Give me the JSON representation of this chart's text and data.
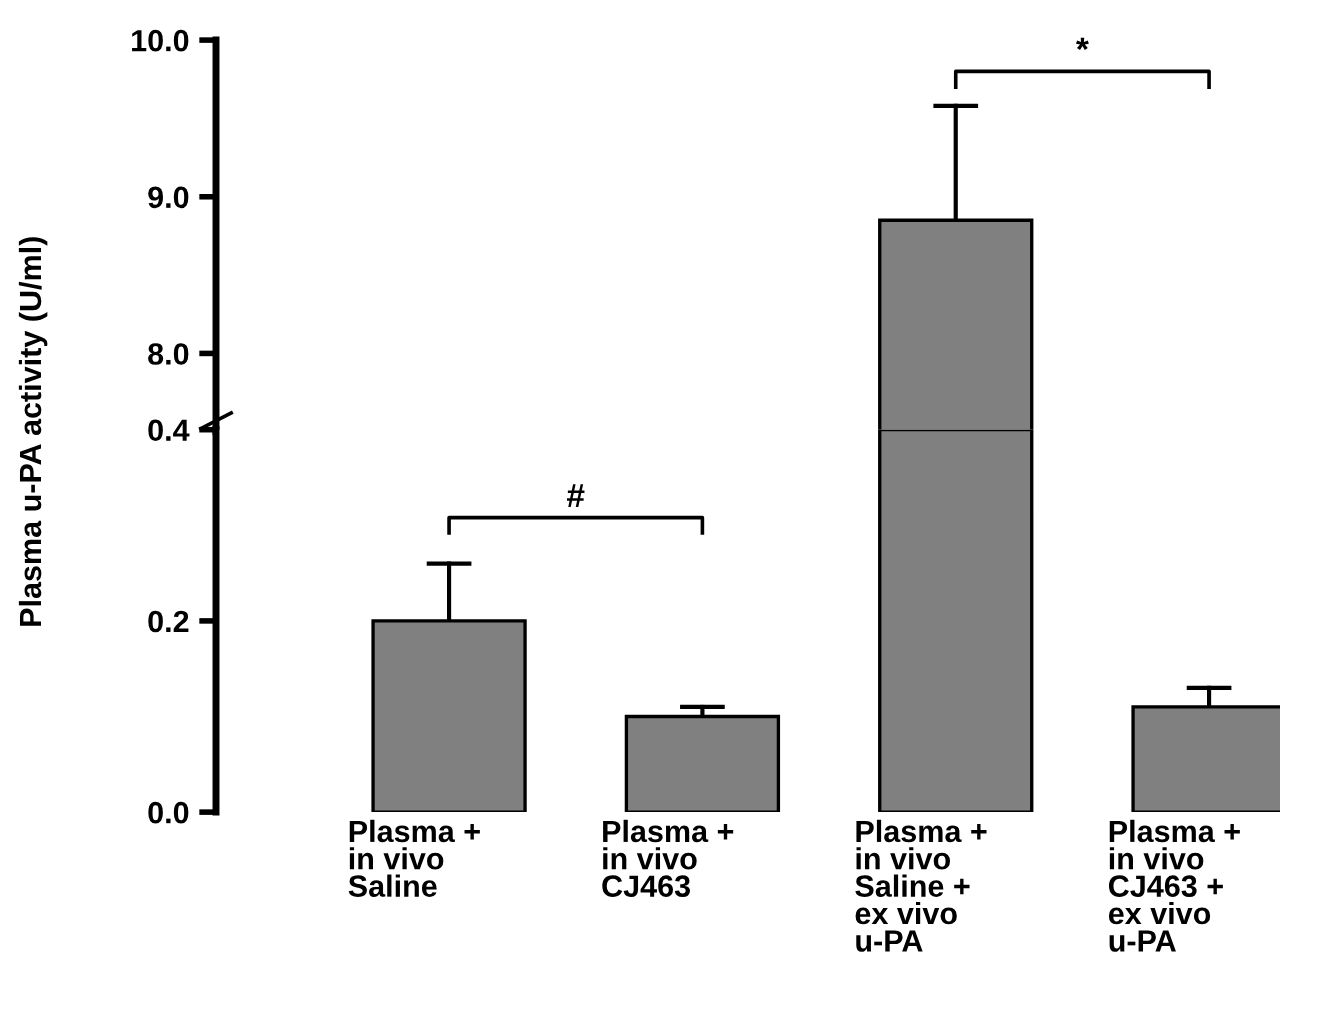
{
  "chart_data": [
    {
      "type": "bar",
      "ylabel": "Plasma u-PA activity (U/ml)",
      "values": [
        null,
        null,
        8.85,
        null
      ],
      "errors": [
        null,
        null,
        [
          8.85,
          9.58
        ],
        null
      ],
      "color": "#808080",
      "ylim": [
        7.5,
        10.0
      ],
      "yticks": [
        {
          "value": 8.0,
          "label": "8.0"
        },
        {
          "value": 9.0,
          "label": "9.0"
        },
        {
          "value": 10.0,
          "label": "10.0"
        }
      ],
      "tick_labels": "y",
      "grid": false,
      "annotations": [
        "*"
      ]
    },
    {
      "type": "bar",
      "categories": [
        "Plasma +\nin vivo\nSaline",
        "Plasma +\nin vivo\nCJ463",
        "Plasma +\nin vivo\nSaline +\nex vivo\nu-PA",
        "Plasma +\nin vivo\nCJ463 +\nex vivo\nu-PA"
      ],
      "values": [
        0.2,
        0.1,
        0.4,
        0.11
      ],
      "errors": [
        [
          0.2,
          0.26
        ],
        [
          0.1,
          0.11
        ],
        null,
        [
          0.11,
          0.13
        ]
      ],
      "color": "#808080",
      "ylim": [
        0.0,
        0.4
      ],
      "yticks": [
        {
          "value": 0.0,
          "label": "0.0"
        },
        {
          "value": 0.2,
          "label": "0.2"
        },
        {
          "value": 0.4,
          "label": "0.4"
        }
      ],
      "grid": false,
      "annotations": [
        "#"
      ]
    }
  ]
}
